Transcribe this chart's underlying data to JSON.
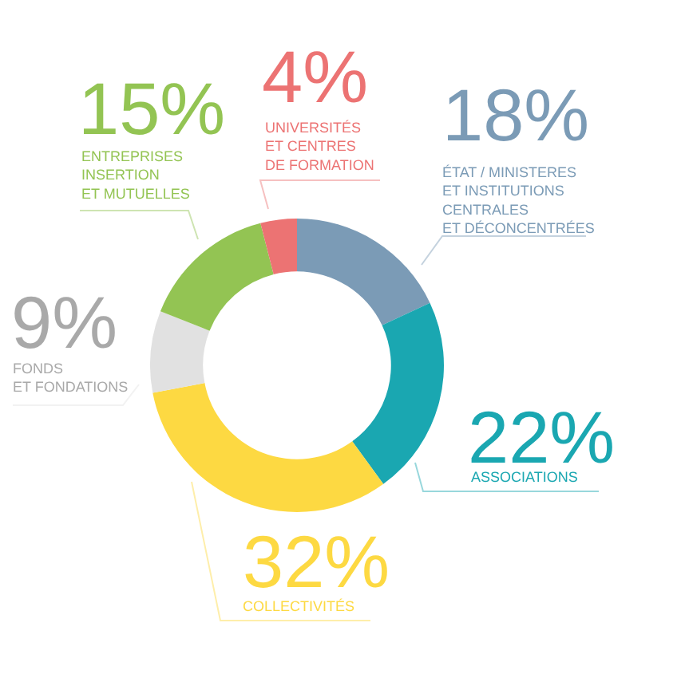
{
  "chart_data": {
    "type": "donut",
    "categories": [
      "ÉTAT / MINISTERES\nET INSTITUTIONS\nCENTRALES\nET DÉCONCENTRÉES",
      "ASSOCIATIONS",
      "COLLECTIVITÉS",
      "FONDS\nET FONDATIONS",
      "ENTREPRISES\nINSERTION\nET MUTUELLES",
      "UNIVERSITÉS\nET CENTRES\nDE FORMATION"
    ],
    "values": [
      18,
      22,
      32,
      9,
      15,
      4
    ],
    "value_labels": [
      "18%",
      "22%",
      "32%",
      "9%",
      "15%",
      "4%"
    ],
    "colors": [
      "#7b9bb6",
      "#1aa7b1",
      "#fdd942",
      "#e1e1e1",
      "#93c453",
      "#ec7373"
    ],
    "legend": false
  }
}
